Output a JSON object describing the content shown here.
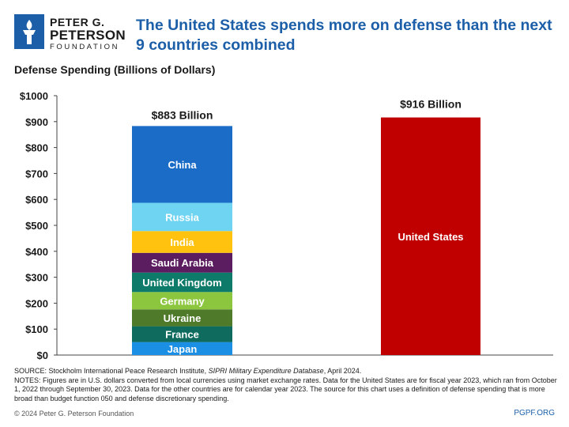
{
  "header": {
    "logo_line1": "PETER G.",
    "logo_line2": "PETERSON",
    "logo_line3": "FOUNDATION",
    "title": "The United States spends more on defense than the next 9 countries combined"
  },
  "chart_data": {
    "type": "bar",
    "subtitle": "Defense Spending (Billions of Dollars)",
    "yaxis": {
      "min": 0,
      "max": 1000,
      "step": 100,
      "tick_labels": [
        "$0",
        "$100",
        "$200",
        "$300",
        "$400",
        "$500",
        "$600",
        "$700",
        "$800",
        "$900",
        "$1000"
      ]
    },
    "grid": false,
    "stacked_bar": {
      "total_label": "$883 Billion",
      "total": 883,
      "segments": [
        {
          "name": "Japan",
          "value": 50,
          "color": "#1a8fe3"
        },
        {
          "name": "France",
          "value": 61,
          "color": "#0f6b5e"
        },
        {
          "name": "Ukraine",
          "value": 65,
          "color": "#4e7a2a"
        },
        {
          "name": "Germany",
          "value": 67,
          "color": "#8cc63f"
        },
        {
          "name": "United Kingdom",
          "value": 75,
          "color": "#0e7a6a"
        },
        {
          "name": "Saudi Arabia",
          "value": 76,
          "color": "#5b1d5f"
        },
        {
          "name": "India",
          "value": 84,
          "color": "#ffc20e"
        },
        {
          "name": "Russia",
          "value": 109,
          "color": "#6fd4f2"
        },
        {
          "name": "China",
          "value": 296,
          "color": "#1a6cc7"
        }
      ]
    },
    "single_bar": {
      "name": "United States",
      "value": 916,
      "total_label": "$916 Billion",
      "color": "#c00000"
    }
  },
  "notes": {
    "source_prefix": "SOURCE: Stockholm International Peace Research Institute, ",
    "source_title": "SIPRI Military Expenditure Database",
    "source_suffix": ", April 2024.",
    "notes_text": "NOTES: Figures are in U.S. dollars converted from local currencies using market exchange rates. Data for the United States are for fiscal year 2023, which ran from October 1, 2022 through September 30, 2023. Data for the other countries are for calendar year 2023. The source for this chart uses a definition of defense spending that is more broad than budget function 050 and defense discretionary spending."
  },
  "footer": {
    "copyright": "© 2024 Peter G. Peterson Foundation",
    "site": "PGPF.ORG"
  }
}
